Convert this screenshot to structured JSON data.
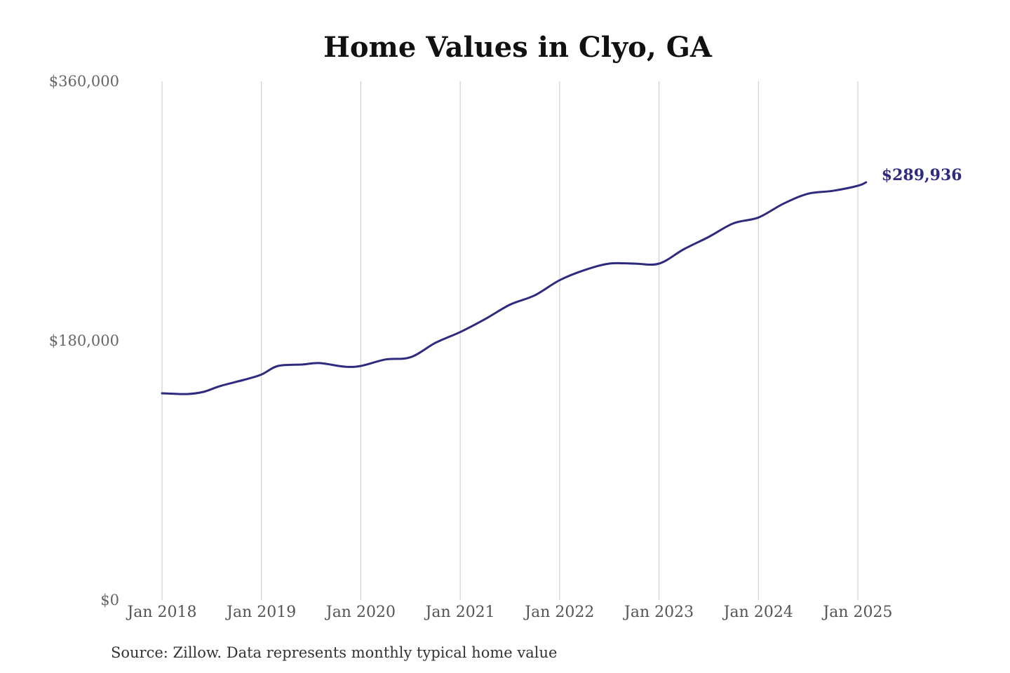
{
  "chart_data": {
    "type": "line",
    "title": "Home Values in Clyo, GA",
    "xlabel": "",
    "ylabel": "",
    "source": "Source: Zillow. Data represents monthly typical home value",
    "x_range": [
      "2018-01",
      "2025-02"
    ],
    "ylim": [
      0,
      360000
    ],
    "y_ticks": [
      {
        "value": 0,
        "label": "$0"
      },
      {
        "value": 180000,
        "label": "$180,000"
      },
      {
        "value": 360000,
        "label": "$360,000"
      }
    ],
    "x_ticks": [
      {
        "date": "2018-01",
        "label": "Jan 2018"
      },
      {
        "date": "2019-01",
        "label": "Jan 2019"
      },
      {
        "date": "2020-01",
        "label": "Jan 2020"
      },
      {
        "date": "2021-01",
        "label": "Jan 2021"
      },
      {
        "date": "2022-01",
        "label": "Jan 2022"
      },
      {
        "date": "2023-01",
        "label": "Jan 2023"
      },
      {
        "date": "2024-01",
        "label": "Jan 2024"
      },
      {
        "date": "2025-01",
        "label": "Jan 2025"
      }
    ],
    "grid": {
      "vertical": true,
      "horizontal": false
    },
    "line_color": "#2e2b7f",
    "end_label": "$289,936",
    "series": [
      {
        "points": [
          {
            "x": "2018-01",
            "y": 143500
          },
          {
            "x": "2018-04",
            "y": 143000
          },
          {
            "x": "2018-06",
            "y": 144500
          },
          {
            "x": "2018-08",
            "y": 148500
          },
          {
            "x": "2018-11",
            "y": 153000
          },
          {
            "x": "2019-01",
            "y": 156500
          },
          {
            "x": "2019-03",
            "y": 162500
          },
          {
            "x": "2019-06",
            "y": 163500
          },
          {
            "x": "2019-08",
            "y": 164500
          },
          {
            "x": "2019-11",
            "y": 162000
          },
          {
            "x": "2020-01",
            "y": 162500
          },
          {
            "x": "2020-04",
            "y": 167000
          },
          {
            "x": "2020-07",
            "y": 168500
          },
          {
            "x": "2020-10",
            "y": 178500
          },
          {
            "x": "2021-01",
            "y": 186000
          },
          {
            "x": "2021-04",
            "y": 195000
          },
          {
            "x": "2021-07",
            "y": 205000
          },
          {
            "x": "2021-10",
            "y": 211500
          },
          {
            "x": "2022-01",
            "y": 222000
          },
          {
            "x": "2022-04",
            "y": 229000
          },
          {
            "x": "2022-07",
            "y": 233500
          },
          {
            "x": "2022-10",
            "y": 233500
          },
          {
            "x": "2023-01",
            "y": 233500
          },
          {
            "x": "2023-04",
            "y": 243500
          },
          {
            "x": "2023-07",
            "y": 252000
          },
          {
            "x": "2023-10",
            "y": 261500
          },
          {
            "x": "2024-01",
            "y": 265500
          },
          {
            "x": "2024-04",
            "y": 275000
          },
          {
            "x": "2024-07",
            "y": 282000
          },
          {
            "x": "2024-10",
            "y": 284000
          },
          {
            "x": "2025-01",
            "y": 287500
          },
          {
            "x": "2025-02",
            "y": 289936
          }
        ]
      }
    ]
  }
}
